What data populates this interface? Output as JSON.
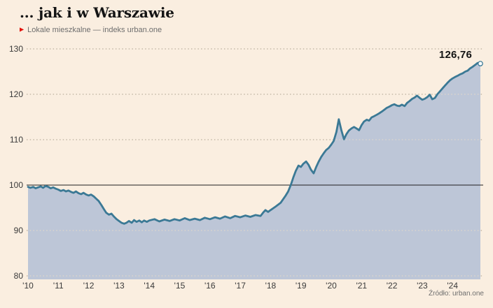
{
  "header": {
    "title": "... jak i w Warszawie",
    "subtitle": "Lokale mieszkalne — indeks urban.one"
  },
  "annotation": {
    "last_value_label": "126,76"
  },
  "source_note": "Źródło: urban.one",
  "colors": {
    "background": "#faeee0",
    "area_fill": "#bdc6d7",
    "line": "#3b7995",
    "baseline": "#1f1f1f",
    "grid_on_background": "#a89d8b",
    "grid_on_fill": "#eadcc7",
    "endpoint_fill": "#ffffff",
    "accent_red": "#e3120b",
    "tick_text": "#3a3a3a",
    "muted_text": "#6e6e6e"
  },
  "chart_data": {
    "type": "area",
    "title": "... jak i w Warszawie",
    "subtitle": "Lokale mieszkalne — indeks urban.one",
    "source": "Źródło: urban.one",
    "legend_position": "none",
    "grid": "dotted-horizontal",
    "baseline_value": 100,
    "ylim": [
      79,
      131.5
    ],
    "xlim": [
      2010,
      2025.1
    ],
    "y_ticks": [
      130,
      120,
      110,
      100,
      90,
      80
    ],
    "x_ticks": [
      {
        "year": 2010,
        "label": "'10"
      },
      {
        "year": 2011,
        "label": "'11"
      },
      {
        "year": 2012,
        "label": "'12"
      },
      {
        "year": 2013,
        "label": "'13"
      },
      {
        "year": 2014,
        "label": "'14"
      },
      {
        "year": 2015,
        "label": "'15"
      },
      {
        "year": 2016,
        "label": "'16"
      },
      {
        "year": 2017,
        "label": "'17"
      },
      {
        "year": 2018,
        "label": "'18"
      },
      {
        "year": 2019,
        "label": "'19"
      },
      {
        "year": 2020,
        "label": "'20"
      },
      {
        "year": 2021,
        "label": "'21"
      },
      {
        "year": 2022,
        "label": "'22"
      },
      {
        "year": 2023,
        "label": "'23"
      },
      {
        "year": 2024,
        "label": "'24"
      }
    ],
    "last_point": {
      "x": 2024.92,
      "y": 126.76,
      "label": "126,76"
    },
    "series": [
      {
        "name": "Lokale mieszkalne — indeks urban.one (Warszawa)",
        "points": [
          [
            2010.0,
            99.6
          ],
          [
            2010.08,
            99.4
          ],
          [
            2010.17,
            99.6
          ],
          [
            2010.25,
            99.3
          ],
          [
            2010.33,
            99.5
          ],
          [
            2010.42,
            99.7
          ],
          [
            2010.5,
            99.4
          ],
          [
            2010.58,
            99.8
          ],
          [
            2010.67,
            99.6
          ],
          [
            2010.75,
            99.3
          ],
          [
            2010.83,
            99.5
          ],
          [
            2010.92,
            99.2
          ],
          [
            2011.0,
            99.0
          ],
          [
            2011.08,
            98.7
          ],
          [
            2011.17,
            98.9
          ],
          [
            2011.25,
            98.6
          ],
          [
            2011.33,
            98.8
          ],
          [
            2011.42,
            98.5
          ],
          [
            2011.5,
            98.3
          ],
          [
            2011.58,
            98.6
          ],
          [
            2011.67,
            98.2
          ],
          [
            2011.75,
            98.0
          ],
          [
            2011.83,
            98.3
          ],
          [
            2011.92,
            97.9
          ],
          [
            2012.0,
            97.7
          ],
          [
            2012.08,
            97.9
          ],
          [
            2012.17,
            97.5
          ],
          [
            2012.25,
            97.0
          ],
          [
            2012.33,
            96.5
          ],
          [
            2012.42,
            95.6
          ],
          [
            2012.5,
            94.7
          ],
          [
            2012.58,
            93.9
          ],
          [
            2012.67,
            93.5
          ],
          [
            2012.75,
            93.7
          ],
          [
            2012.83,
            93.1
          ],
          [
            2012.92,
            92.5
          ],
          [
            2013.0,
            92.1
          ],
          [
            2013.08,
            91.7
          ],
          [
            2013.17,
            91.5
          ],
          [
            2013.25,
            91.7
          ],
          [
            2013.33,
            92.1
          ],
          [
            2013.42,
            91.7
          ],
          [
            2013.5,
            92.3
          ],
          [
            2013.58,
            91.9
          ],
          [
            2013.67,
            92.2
          ],
          [
            2013.75,
            91.8
          ],
          [
            2013.83,
            92.2
          ],
          [
            2013.92,
            91.9
          ],
          [
            2014.0,
            92.2
          ],
          [
            2014.17,
            92.5
          ],
          [
            2014.33,
            92.0
          ],
          [
            2014.5,
            92.4
          ],
          [
            2014.67,
            92.1
          ],
          [
            2014.83,
            92.5
          ],
          [
            2015.0,
            92.2
          ],
          [
            2015.17,
            92.7
          ],
          [
            2015.33,
            92.3
          ],
          [
            2015.5,
            92.6
          ],
          [
            2015.67,
            92.3
          ],
          [
            2015.83,
            92.8
          ],
          [
            2016.0,
            92.5
          ],
          [
            2016.17,
            92.9
          ],
          [
            2016.33,
            92.6
          ],
          [
            2016.5,
            93.1
          ],
          [
            2016.67,
            92.7
          ],
          [
            2016.83,
            93.2
          ],
          [
            2017.0,
            92.9
          ],
          [
            2017.17,
            93.3
          ],
          [
            2017.33,
            93.0
          ],
          [
            2017.5,
            93.4
          ],
          [
            2017.67,
            93.2
          ],
          [
            2017.75,
            93.9
          ],
          [
            2017.83,
            94.5
          ],
          [
            2017.92,
            94.1
          ],
          [
            2018.0,
            94.5
          ],
          [
            2018.17,
            95.3
          ],
          [
            2018.33,
            96.1
          ],
          [
            2018.5,
            97.7
          ],
          [
            2018.58,
            98.6
          ],
          [
            2018.67,
            100.1
          ],
          [
            2018.75,
            101.7
          ],
          [
            2018.83,
            103.1
          ],
          [
            2018.92,
            104.3
          ],
          [
            2019.0,
            104.0
          ],
          [
            2019.08,
            104.7
          ],
          [
            2019.17,
            105.2
          ],
          [
            2019.25,
            104.5
          ],
          [
            2019.33,
            103.4
          ],
          [
            2019.42,
            102.6
          ],
          [
            2019.5,
            103.9
          ],
          [
            2019.58,
            105.1
          ],
          [
            2019.67,
            106.2
          ],
          [
            2019.75,
            107.0
          ],
          [
            2019.83,
            107.7
          ],
          [
            2019.92,
            108.2
          ],
          [
            2020.0,
            108.9
          ],
          [
            2020.08,
            109.7
          ],
          [
            2020.17,
            111.7
          ],
          [
            2020.25,
            114.5
          ],
          [
            2020.33,
            112.2
          ],
          [
            2020.42,
            110.1
          ],
          [
            2020.5,
            111.2
          ],
          [
            2020.58,
            112.0
          ],
          [
            2020.67,
            112.5
          ],
          [
            2020.75,
            112.8
          ],
          [
            2020.83,
            112.5
          ],
          [
            2020.92,
            112.1
          ],
          [
            2021.0,
            113.2
          ],
          [
            2021.08,
            114.0
          ],
          [
            2021.17,
            114.4
          ],
          [
            2021.25,
            114.2
          ],
          [
            2021.33,
            114.9
          ],
          [
            2021.42,
            115.2
          ],
          [
            2021.5,
            115.5
          ],
          [
            2021.58,
            115.8
          ],
          [
            2021.67,
            116.2
          ],
          [
            2021.75,
            116.6
          ],
          [
            2021.83,
            117.0
          ],
          [
            2021.92,
            117.3
          ],
          [
            2022.0,
            117.6
          ],
          [
            2022.08,
            117.8
          ],
          [
            2022.17,
            117.5
          ],
          [
            2022.25,
            117.4
          ],
          [
            2022.33,
            117.7
          ],
          [
            2022.42,
            117.4
          ],
          [
            2022.5,
            118.1
          ],
          [
            2022.58,
            118.5
          ],
          [
            2022.67,
            119.0
          ],
          [
            2022.75,
            119.3
          ],
          [
            2022.83,
            119.7
          ],
          [
            2022.92,
            119.2
          ],
          [
            2023.0,
            118.8
          ],
          [
            2023.08,
            119.0
          ],
          [
            2023.17,
            119.4
          ],
          [
            2023.25,
            119.9
          ],
          [
            2023.33,
            118.9
          ],
          [
            2023.42,
            119.2
          ],
          [
            2023.5,
            120.0
          ],
          [
            2023.58,
            120.6
          ],
          [
            2023.67,
            121.3
          ],
          [
            2023.75,
            121.9
          ],
          [
            2023.83,
            122.5
          ],
          [
            2023.92,
            123.1
          ],
          [
            2024.0,
            123.5
          ],
          [
            2024.08,
            123.8
          ],
          [
            2024.17,
            124.1
          ],
          [
            2024.25,
            124.4
          ],
          [
            2024.33,
            124.6
          ],
          [
            2024.42,
            125.0
          ],
          [
            2024.5,
            125.2
          ],
          [
            2024.58,
            125.7
          ],
          [
            2024.67,
            126.1
          ],
          [
            2024.75,
            126.5
          ],
          [
            2024.83,
            126.9
          ],
          [
            2024.92,
            126.76
          ]
        ]
      }
    ]
  }
}
